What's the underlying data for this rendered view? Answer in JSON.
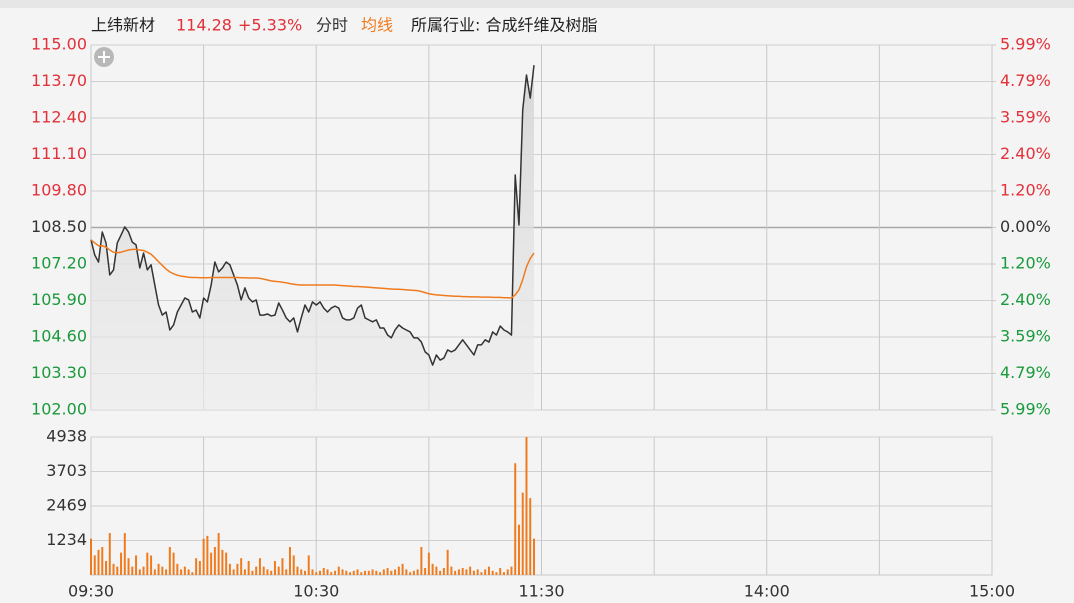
{
  "chart_data": {
    "type": "line",
    "title": "上纬新材",
    "last_price": 114.28,
    "change": "+5.33%",
    "mode": "分时",
    "industry": "所属行业: 合成纤维及树脂",
    "x": [
      0,
      1,
      2,
      3,
      4,
      5,
      6,
      7,
      8,
      9,
      10,
      11,
      12,
      13,
      14,
      15,
      16,
      17,
      18,
      19,
      20,
      21,
      22,
      23,
      24,
      25,
      26,
      27,
      28,
      29,
      30,
      31,
      32,
      33,
      34,
      35,
      36,
      37,
      38,
      39,
      40,
      41,
      42,
      43,
      44,
      45,
      46,
      47,
      48,
      49,
      50,
      51,
      52,
      53,
      54,
      55,
      56,
      57,
      58,
      59,
      60,
      61,
      62,
      63,
      64,
      65,
      66,
      67,
      68,
      69,
      70,
      71,
      72,
      73,
      74,
      75,
      76,
      77,
      78,
      79,
      80,
      81,
      82,
      83,
      84,
      85,
      86,
      87,
      88,
      89,
      90,
      91,
      92,
      93,
      94,
      95,
      96,
      97,
      98,
      99,
      100,
      101,
      102,
      103,
      104,
      105,
      106,
      107,
      108,
      109,
      110,
      111,
      112,
      113,
      114,
      115,
      116,
      117,
      118
    ],
    "xlim": [
      0,
      240
    ],
    "xticks": [
      {
        "value": 0,
        "label": "09:30"
      },
      {
        "value": 60,
        "label": "10:30"
      },
      {
        "value": 120,
        "label": "11:30"
      },
      {
        "value": 180,
        "label": "14:00"
      },
      {
        "value": 240,
        "label": "15:00"
      }
    ],
    "ylim": [
      102,
      115
    ],
    "yticks": [
      {
        "value": 115,
        "label": "115.00"
      },
      {
        "value": 113.7,
        "label": "113.70"
      },
      {
        "value": 112.4,
        "label": "112.40"
      },
      {
        "value": 111.1,
        "label": "111.10"
      },
      {
        "value": 109.8,
        "label": "109.80"
      },
      {
        "value": 108.5,
        "label": "108.50"
      },
      {
        "value": 107.2,
        "label": "107.20"
      },
      {
        "value": 105.9,
        "label": "105.90"
      },
      {
        "value": 104.6,
        "label": "104.60"
      },
      {
        "value": 103.3,
        "label": "103.30"
      },
      {
        "value": 102,
        "label": "102.00"
      }
    ],
    "y2lim": [
      -5.99,
      5.99
    ],
    "y2ticks": [
      {
        "value": 5.99,
        "label": "5.99%"
      },
      {
        "value": 4.79,
        "label": "4.79%"
      },
      {
        "value": 3.59,
        "label": "3.59%"
      },
      {
        "value": 2.4,
        "label": "2.40%"
      },
      {
        "value": 1.2,
        "label": "1.20%"
      },
      {
        "value": 0,
        "label": "0.00%"
      },
      {
        "value": -1.2,
        "label": "1.20%"
      },
      {
        "value": -2.4,
        "label": "2.40%"
      },
      {
        "value": -3.59,
        "label": "3.59%"
      },
      {
        "value": -4.79,
        "label": "4.79%"
      },
      {
        "value": -5.99,
        "label": "5.99%"
      }
    ],
    "grid": true,
    "series": [
      {
        "color": "#333333",
        "values": [
          108.06,
          107.52,
          107.27,
          108.34,
          107.95,
          106.81,
          106.99,
          107.95,
          108.23,
          108.52,
          108.34,
          107.98,
          107.88,
          107.06,
          107.59,
          106.99,
          107.17,
          106.45,
          105.74,
          105.38,
          105.49,
          104.85,
          105.03,
          105.49,
          105.74,
          105.99,
          105.92,
          105.49,
          105.56,
          105.28,
          105.99,
          105.85,
          106.45,
          107.27,
          106.92,
          107.06,
          107.27,
          107.17,
          106.81,
          106.45,
          105.92,
          106.35,
          105.99,
          105.85,
          105.92,
          105.38,
          105.38,
          105.42,
          105.35,
          105.38,
          105.81,
          105.56,
          105.28,
          105.14,
          105.28,
          104.78,
          105.28,
          105.74,
          105.49,
          105.85,
          105.74,
          105.85,
          105.63,
          105.49,
          105.63,
          105.7,
          105.63,
          105.28,
          105.21,
          105.21,
          105.28,
          105.63,
          105.74,
          105.28,
          105.21,
          105.14,
          105.21,
          104.92,
          104.92,
          104.67,
          104.57,
          104.85,
          105.03,
          104.92,
          104.85,
          104.78,
          104.57,
          104.57,
          104.42,
          104.07,
          103.96,
          103.6,
          103.96,
          103.78,
          103.85,
          104.14,
          104.07,
          104.14,
          104.32,
          104.5,
          104.32,
          104.14,
          103.96,
          104.32,
          104.32,
          104.5,
          104.42,
          104.78,
          104.67,
          104.99,
          104.85,
          104.78,
          104.67,
          110.37,
          108.59,
          112.69,
          113.93,
          113.11,
          114.28
        ]
      },
      {
        "name": "均线",
        "color": "#f07b1e",
        "values": [
          108.06,
          107.95,
          107.85,
          107.85,
          107.8,
          107.7,
          107.62,
          107.6,
          107.62,
          107.66,
          107.7,
          107.72,
          107.72,
          107.7,
          107.68,
          107.62,
          107.55,
          107.42,
          107.28,
          107.15,
          107.02,
          106.92,
          106.85,
          106.8,
          106.77,
          106.75,
          106.73,
          106.72,
          106.72,
          106.71,
          106.71,
          106.71,
          106.72,
          106.72,
          106.72,
          106.72,
          106.72,
          106.72,
          106.72,
          106.72,
          106.71,
          106.71,
          106.7,
          106.7,
          106.7,
          106.69,
          106.66,
          106.63,
          106.6,
          106.58,
          106.57,
          106.55,
          106.53,
          106.5,
          106.48,
          106.46,
          106.45,
          106.45,
          106.45,
          106.45,
          106.45,
          106.45,
          106.45,
          106.45,
          106.45,
          106.45,
          106.44,
          106.43,
          106.42,
          106.41,
          106.4,
          106.4,
          106.39,
          106.38,
          106.37,
          106.36,
          106.35,
          106.34,
          106.33,
          106.32,
          106.31,
          106.3,
          106.3,
          106.29,
          106.28,
          106.27,
          106.26,
          106.25,
          106.22,
          106.18,
          106.14,
          106.12,
          106.1,
          106.09,
          106.08,
          106.07,
          106.06,
          106.05,
          106.05,
          106.04,
          106.04,
          106.03,
          106.03,
          106.03,
          106.02,
          106.02,
          106.02,
          106.01,
          106.01,
          106.01,
          106.0,
          106.0,
          105.99,
          106.1,
          106.28,
          106.64,
          107.1,
          107.4,
          107.59
        ]
      }
    ],
    "volume": {
      "color": "#f07b1e",
      "ylim": [
        0,
        4938
      ],
      "yticks": [
        4938,
        3703,
        2469,
        1234
      ],
      "values": [
        1300,
        700,
        900,
        1000,
        500,
        1500,
        400,
        300,
        800,
        1500,
        600,
        300,
        700,
        200,
        300,
        800,
        700,
        200,
        400,
        300,
        200,
        1000,
        800,
        400,
        200,
        300,
        200,
        100,
        600,
        500,
        1300,
        1400,
        800,
        1000,
        1500,
        900,
        800,
        400,
        200,
        400,
        600,
        200,
        500,
        150,
        300,
        600,
        300,
        200,
        150,
        500,
        300,
        600,
        200,
        1000,
        700,
        300,
        200,
        150,
        700,
        200,
        100,
        150,
        250,
        200,
        100,
        150,
        300,
        200,
        150,
        100,
        150,
        200,
        100,
        150,
        150,
        200,
        150,
        100,
        200,
        250,
        150,
        200,
        300,
        400,
        200,
        100,
        150,
        200,
        1000,
        250,
        800,
        400,
        300,
        150,
        250,
        900,
        300,
        150,
        200,
        250,
        200,
        300,
        150,
        200,
        100,
        200,
        300,
        150,
        100,
        250,
        100,
        200,
        300,
        4000,
        1800,
        2950,
        4938,
        2750,
        1300
      ]
    }
  }
}
